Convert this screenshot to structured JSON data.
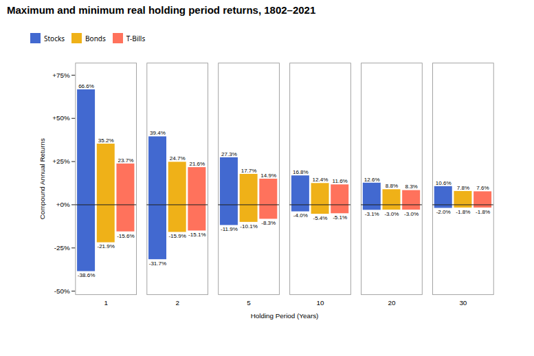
{
  "chart_data": {
    "type": "bar",
    "title": "Maximum and minimum real holding period returns, 1802–2021",
    "xlabel": "Holding Period (Years)",
    "ylabel": "Compound Annual Returns",
    "categories": [
      "1",
      "2",
      "5",
      "10",
      "20",
      "30"
    ],
    "series": [
      {
        "name": "Stocks",
        "values": [
          66.6,
          39.4,
          27.3,
          16.8,
          12.6,
          10.6
        ],
        "value_labels": [
          "66.6%",
          "39.4%",
          "27.3%",
          "16.8%",
          "12.6%",
          "10.6%"
        ],
        "min_values": [
          -38.6,
          -31.7,
          -11.9,
          -4.0,
          -3.1,
          -2.0
        ],
        "min_value_labels": [
          "-38.6%",
          "-31.7%",
          "-11.9%",
          "-4.0%",
          "-3.1%",
          "-2.0%"
        ]
      },
      {
        "name": "Bonds",
        "values": [
          35.2,
          24.7,
          17.7,
          12.4,
          8.8,
          7.8
        ],
        "value_labels": [
          "35.2%",
          "24.7%",
          "17.7%",
          "12.4%",
          "8.8%",
          "7.8%"
        ],
        "min_values": [
          -21.9,
          -15.9,
          -10.1,
          -5.4,
          -3.0,
          -1.8
        ],
        "min_value_labels": [
          "-21.9%",
          "-15.9%",
          "-10.1%",
          "-5.4%",
          "-3.0%",
          "-1.8%"
        ]
      },
      {
        "name": "T-Bills",
        "values": [
          23.7,
          21.6,
          14.9,
          11.6,
          8.3,
          7.6
        ],
        "value_labels": [
          "23.7%",
          "21.6%",
          "14.9%",
          "11.6%",
          "8.3%",
          "7.6%"
        ],
        "min_values": [
          -15.6,
          -15.1,
          -8.3,
          -5.1,
          -3.0,
          -1.8
        ],
        "min_value_labels": [
          "-15.6%",
          "-15.1%",
          "-8.3%",
          "-5.1%",
          "-3.0%",
          "-1.8%"
        ]
      }
    ],
    "ylim": [
      -52,
      82
    ],
    "yticks": [
      {
        "value": -50,
        "label": "-50%"
      },
      {
        "value": -25,
        "label": "-25%"
      },
      {
        "value": 0,
        "label": "+0%"
      },
      {
        "value": 25,
        "label": "+25%"
      },
      {
        "value": 50,
        "label": "+50%"
      },
      {
        "value": 75,
        "label": "+75%"
      }
    ],
    "data_labels": true,
    "legend": "top"
  }
}
